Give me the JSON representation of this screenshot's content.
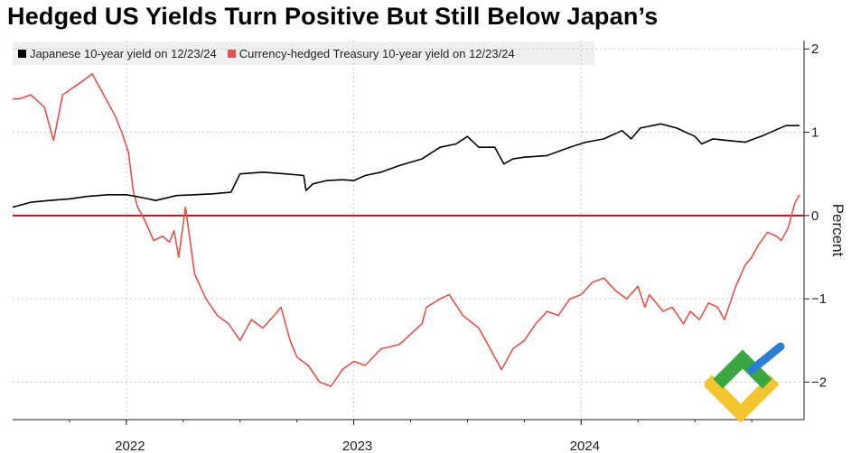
{
  "header": {
    "title": "Hedged US Yields Turn Positive But Still Below Japan’s"
  },
  "legend": [
    {
      "label": "Japanese 10-year yield on 12/23/24",
      "color": "#000000"
    },
    {
      "label": "Currency-hedged Treasury 10-year yield on 12/23/24",
      "color": "#e8504a"
    }
  ],
  "chart_data": {
    "type": "line",
    "title": "Hedged US Yields Turn Positive But Still Below Japan’s",
    "xlabel": "",
    "ylabel": "Percent",
    "x_ticks": [
      "2022",
      "2023",
      "2024"
    ],
    "y_ticks": [
      2,
      1,
      0,
      -1,
      -2
    ],
    "ylim": [
      -2.45,
      2.1
    ],
    "xlim": [
      2021.5,
      2024.98
    ],
    "y_axis_side": "right",
    "grid": true,
    "reference_line": {
      "value": 0,
      "color": "#cc1111"
    },
    "series": [
      {
        "name": "Japanese 10-year yield on 12/23/24",
        "color": "#000000",
        "x": [
          2021.5,
          2021.58,
          2021.66,
          2021.75,
          2021.83,
          2021.92,
          2022.0,
          2022.06,
          2022.13,
          2022.22,
          2022.3,
          2022.38,
          2022.46,
          2022.5,
          2022.6,
          2022.7,
          2022.78,
          2022.79,
          2022.82,
          2022.88,
          2022.95,
          2023.0,
          2023.05,
          2023.12,
          2023.2,
          2023.3,
          2023.38,
          2023.45,
          2023.5,
          2023.55,
          2023.62,
          2023.66,
          2023.7,
          2023.75,
          2023.85,
          2023.95,
          2024.02,
          2024.1,
          2024.18,
          2024.22,
          2024.26,
          2024.35,
          2024.42,
          2024.5,
          2024.53,
          2024.58,
          2024.65,
          2024.72,
          2024.8,
          2024.85,
          2024.9,
          2024.96
        ],
        "values": [
          0.1,
          0.16,
          0.18,
          0.2,
          0.23,
          0.25,
          0.25,
          0.22,
          0.18,
          0.24,
          0.25,
          0.26,
          0.28,
          0.5,
          0.52,
          0.5,
          0.48,
          0.3,
          0.38,
          0.42,
          0.43,
          0.42,
          0.48,
          0.52,
          0.6,
          0.68,
          0.82,
          0.86,
          0.95,
          0.82,
          0.82,
          0.62,
          0.68,
          0.7,
          0.72,
          0.82,
          0.88,
          0.92,
          1.02,
          0.92,
          1.05,
          1.1,
          1.05,
          0.95,
          0.86,
          0.92,
          0.9,
          0.88,
          0.96,
          1.02,
          1.08,
          1.08
        ]
      },
      {
        "name": "Currency-hedged Treasury 10-year yield on 12/23/24",
        "color": "#e8504a",
        "x": [
          2021.5,
          2021.53,
          2021.58,
          2021.64,
          2021.68,
          2021.72,
          2021.8,
          2021.85,
          2021.9,
          2021.95,
          2021.98,
          2022.01,
          2022.03,
          2022.05,
          2022.08,
          2022.12,
          2022.16,
          2022.19,
          2022.21,
          2022.23,
          2022.26,
          2022.3,
          2022.35,
          2022.4,
          2022.45,
          2022.5,
          2022.55,
          2022.6,
          2022.65,
          2022.68,
          2022.72,
          2022.75,
          2022.8,
          2022.85,
          2022.9,
          2022.95,
          2023.0,
          2023.05,
          2023.12,
          2023.2,
          2023.3,
          2023.32,
          2023.38,
          2023.42,
          2023.48,
          2023.55,
          2023.6,
          2023.65,
          2023.7,
          2023.75,
          2023.8,
          2023.85,
          2023.9,
          2023.95,
          2024.0,
          2024.05,
          2024.1,
          2024.15,
          2024.2,
          2024.25,
          2024.28,
          2024.3,
          2024.33,
          2024.36,
          2024.4,
          2024.45,
          2024.48,
          2024.52,
          2024.56,
          2024.6,
          2024.63,
          2024.68,
          2024.72,
          2024.75,
          2024.78,
          2024.82,
          2024.86,
          2024.88,
          2024.91,
          2024.93,
          2024.94,
          2024.96
        ],
        "values": [
          1.4,
          1.4,
          1.45,
          1.3,
          0.9,
          1.45,
          1.6,
          1.7,
          1.45,
          1.2,
          1.0,
          0.75,
          0.3,
          0.1,
          -0.05,
          -0.3,
          -0.25,
          -0.32,
          -0.18,
          -0.5,
          0.1,
          -0.7,
          -1.0,
          -1.2,
          -1.3,
          -1.5,
          -1.25,
          -1.35,
          -1.2,
          -1.1,
          -1.5,
          -1.7,
          -1.8,
          -2.0,
          -2.05,
          -1.85,
          -1.75,
          -1.8,
          -1.6,
          -1.55,
          -1.3,
          -1.1,
          -1.0,
          -0.95,
          -1.2,
          -1.35,
          -1.6,
          -1.85,
          -1.6,
          -1.5,
          -1.3,
          -1.15,
          -1.2,
          -1.0,
          -0.95,
          -0.8,
          -0.75,
          -0.9,
          -1.0,
          -0.85,
          -1.1,
          -0.95,
          -1.05,
          -1.15,
          -1.1,
          -1.3,
          -1.15,
          -1.25,
          -1.05,
          -1.1,
          -1.25,
          -0.85,
          -0.6,
          -0.5,
          -0.35,
          -0.2,
          -0.25,
          -0.3,
          -0.15,
          0.05,
          0.15,
          0.25
        ]
      }
    ]
  }
}
